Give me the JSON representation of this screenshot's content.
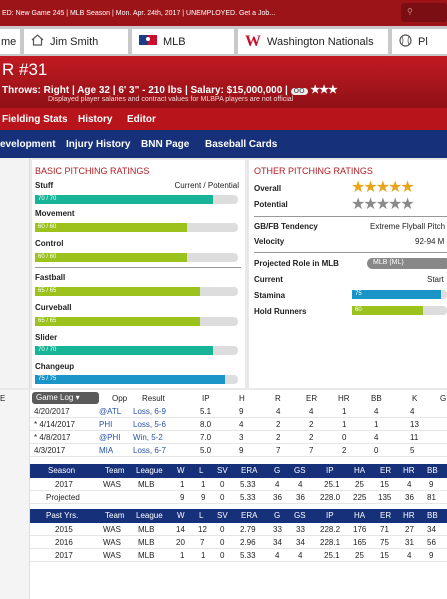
{
  "topbar": {
    "text": "ED: New Game 245  |  MLB Season  |  Mon. Apr. 24th, 2017  |  UNEMPLOYED. Get a Job...",
    "search_icon": "search-icon"
  },
  "tabs": [
    {
      "label": "me",
      "icon": ""
    },
    {
      "label": "Jim Smith",
      "icon": "home-icon"
    },
    {
      "label": "MLB",
      "icon": "mlb-logo-icon"
    },
    {
      "label": "Washington Nationals",
      "icon": "nationals-logo-icon"
    },
    {
      "label": "Pl",
      "icon": "baseball-icon"
    }
  ],
  "player": {
    "number": "R  #31",
    "info": "Throws: Right  |  Age 32  |  6' 3\" - 210 lbs  |  Salary: $15,000,000  |",
    "badge": "OO",
    "star_rating": "★★★",
    "disclaimer": "Displayed player salaries and contract values for MLBPA players are not official"
  },
  "nav1": [
    "Fielding Stats",
    "History",
    "Editor"
  ],
  "nav2": [
    "evelopment",
    "Injury History",
    "BNN Page",
    "Baseball Cards"
  ],
  "basic": {
    "title": "BASIC PITCHING RATINGS",
    "header_right": "Current / Potential",
    "ratings": [
      {
        "label": "Stuff",
        "text": "70 / 70",
        "current": 70,
        "potential": 70,
        "color": "#17b497"
      },
      {
        "label": "Movement",
        "text": "60 / 60",
        "current": 60,
        "potential": 60,
        "color": "#9bc21d"
      },
      {
        "label": "Control",
        "text": "60 / 60",
        "current": 60,
        "potential": 60,
        "color": "#9bc21d"
      },
      {
        "label": "Fastball",
        "text": "65 / 65",
        "current": 65,
        "potential": 65,
        "color": "#9bc21d"
      },
      {
        "label": "Curveball",
        "text": "65 / 65",
        "current": 65,
        "potential": 65,
        "color": "#9bc21d"
      },
      {
        "label": "Slider",
        "text": "70 / 70",
        "current": 70,
        "potential": 70,
        "color": "#17b497"
      },
      {
        "label": "Changeup",
        "text": "75 / 75",
        "current": 75,
        "potential": 75,
        "color": "#1b94c7"
      }
    ]
  },
  "other": {
    "title": "OTHER PITCHING RATINGS",
    "overall_label": "Overall",
    "overall_stars": "★★★★★",
    "potential_label": "Potential",
    "potential_stars": "★★★★★",
    "gbfb_label": "GB/FB Tendency",
    "gbfb_value": "Extreme Flyball Pitch",
    "velocity_label": "Velocity",
    "velocity_value": "92-94 M",
    "role_label": "Projected Role in MLB",
    "role_value": "MLB (ML)",
    "current_label": "Current",
    "current_value": "Start",
    "stamina_label": "Stamina",
    "stamina_value": "75",
    "stamina": 75,
    "hold_label": "Hold Runners",
    "hold_value": "60",
    "hold": 60
  },
  "gamelog": {
    "dropdown": "Game Log",
    "headers": [
      "Opp",
      "Result",
      "IP",
      "H",
      "R",
      "ER",
      "HR",
      "BB",
      "K",
      "G"
    ],
    "rows": [
      {
        "date": "4/20/2017",
        "opp": "@ATL",
        "result": "Loss, 6-9",
        "ip": "5.1",
        "h": "9",
        "r": "4",
        "er": "4",
        "hr": "1",
        "bb": "4",
        "k": "4"
      },
      {
        "date": "* 4/14/2017",
        "opp": "PHI",
        "result": "Loss, 5-6",
        "ip": "8.0",
        "h": "4",
        "r": "2",
        "er": "2",
        "hr": "1",
        "bb": "1",
        "k": "13"
      },
      {
        "date": "* 4/8/2017",
        "opp": "@PHI",
        "result": "Win, 5-2",
        "ip": "7.0",
        "h": "3",
        "r": "2",
        "er": "2",
        "hr": "0",
        "bb": "4",
        "k": "11"
      },
      {
        "date": "4/3/2017",
        "opp": "MIA",
        "result": "Loss, 6-7",
        "ip": "5.0",
        "h": "9",
        "r": "7",
        "er": "7",
        "hr": "2",
        "bb": "0",
        "k": "5"
      }
    ]
  },
  "season": {
    "headers": [
      "Season",
      "Team",
      "League",
      "W",
      "L",
      "SV",
      "ERA",
      "G",
      "GS",
      "IP",
      "HA",
      "ER",
      "HR",
      "BB"
    ],
    "rows": [
      [
        "2017",
        "WAS",
        "MLB",
        "1",
        "1",
        "0",
        "5.33",
        "4",
        "4",
        "25.1",
        "25",
        "15",
        "4",
        "9"
      ],
      [
        "Projected",
        "",
        "",
        "9",
        "9",
        "0",
        "5.33",
        "36",
        "36",
        "228.0",
        "225",
        "135",
        "36",
        "81"
      ]
    ]
  },
  "past": {
    "headers": [
      "Past Yrs.",
      "Team",
      "League",
      "W",
      "L",
      "SV",
      "ERA",
      "G",
      "GS",
      "IP",
      "HA",
      "ER",
      "HR",
      "BB"
    ],
    "rows": [
      [
        "2015",
        "WAS",
        "MLB",
        "14",
        "12",
        "0",
        "2.79",
        "33",
        "33",
        "228.2",
        "176",
        "71",
        "27",
        "34"
      ],
      [
        "2016",
        "WAS",
        "MLB",
        "20",
        "7",
        "0",
        "2.96",
        "34",
        "34",
        "228.1",
        "165",
        "75",
        "31",
        "56"
      ],
      [
        "2017",
        "WAS",
        "MLB",
        "1",
        "1",
        "0",
        "5.33",
        "4",
        "4",
        "25.1",
        "25",
        "15",
        "4",
        "9"
      ]
    ]
  }
}
